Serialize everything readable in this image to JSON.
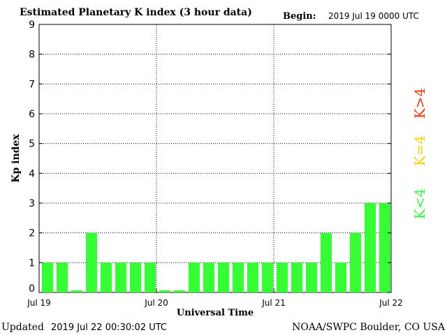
{
  "header": {
    "title": "Estimated Planetary K index (3 hour data)",
    "begin_label": "Begin:",
    "begin_value": "2019 Jul 19 0000 UTC"
  },
  "footer": {
    "updated_label": "Updated",
    "updated_value": "2019 Jul 22 00:30:02 UTC",
    "source": "NOAA/SWPC Boulder, CO USA"
  },
  "legend": {
    "high": "K>4",
    "mid": "K=4",
    "low": "K<4",
    "colors": {
      "high": "#ff3300",
      "mid": "#ffcc00",
      "low": "#33ff33"
    }
  },
  "chart_data": {
    "type": "bar",
    "title": "Estimated Planetary K index (3 hour data)",
    "xlabel": "Universal Time",
    "ylabel": "Kp index",
    "ylim": [
      0,
      9
    ],
    "yticks": [
      "0",
      "1",
      "2",
      "3",
      "4",
      "5",
      "6",
      "7",
      "8",
      "9"
    ],
    "xtick_labels": [
      "Jul 19",
      "Jul 20",
      "Jul 21",
      "Jul 22"
    ],
    "grid": true,
    "bar_color": "#33ff33",
    "values": [
      1,
      1,
      0.07,
      2,
      1,
      1,
      1,
      1,
      0.07,
      0.07,
      1,
      1,
      1,
      1,
      1,
      1,
      1,
      1,
      1,
      2,
      1,
      2,
      3,
      3
    ]
  }
}
